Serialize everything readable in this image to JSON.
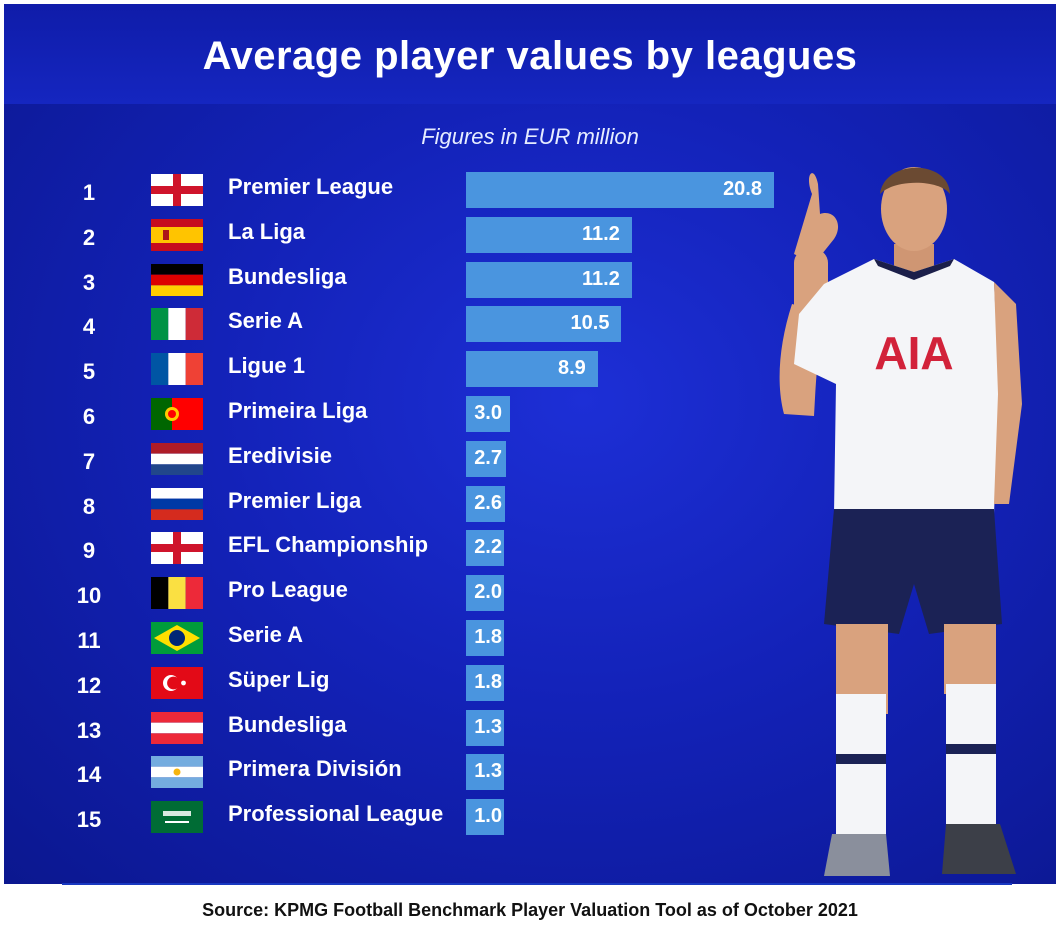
{
  "chart_data": {
    "type": "bar",
    "orientation": "horizontal",
    "title": "Average player values by leagues",
    "subtitle": "Figures in EUR million",
    "source": "Source: KPMG Football Benchmark Player Valuation Tool as of October 2021",
    "grid": false,
    "legend": "none",
    "bar_color": "#4a95df",
    "xlim": [
      0,
      20.8
    ],
    "rows": [
      {
        "rank": "1",
        "flag": "england-flag",
        "league": "Premier League",
        "value": 20.8,
        "label": "20.8"
      },
      {
        "rank": "2",
        "flag": "spain-flag",
        "league": "La Liga",
        "value": 11.2,
        "label": "11.2"
      },
      {
        "rank": "3",
        "flag": "germany-flag",
        "league": "Bundesliga",
        "value": 11.2,
        "label": "11.2"
      },
      {
        "rank": "4",
        "flag": "italy-flag",
        "league": "Serie A",
        "value": 10.5,
        "label": "10.5"
      },
      {
        "rank": "5",
        "flag": "france-flag",
        "league": "Ligue 1",
        "value": 8.9,
        "label": "8.9"
      },
      {
        "rank": "6",
        "flag": "portugal-flag",
        "league": "Primeira Liga",
        "value": 3.0,
        "label": "3.0"
      },
      {
        "rank": "7",
        "flag": "netherlands-flag",
        "league": "Eredivisie",
        "value": 2.7,
        "label": "2.7"
      },
      {
        "rank": "8",
        "flag": "russia-flag",
        "league": "Premier Liga",
        "value": 2.6,
        "label": "2.6"
      },
      {
        "rank": "9",
        "flag": "england-flag",
        "league": "EFL Championship",
        "value": 2.2,
        "label": "2.2"
      },
      {
        "rank": "10",
        "flag": "belgium-flag",
        "league": "Pro League",
        "value": 2.0,
        "label": "2.0"
      },
      {
        "rank": "11",
        "flag": "brazil-flag",
        "league": "Serie A",
        "value": 1.8,
        "label": "1.8"
      },
      {
        "rank": "12",
        "flag": "turkey-flag",
        "league": "Süper Lig",
        "value": 1.8,
        "label": "1.8"
      },
      {
        "rank": "13",
        "flag": "austria-flag",
        "league": "Bundesliga",
        "value": 1.3,
        "label": "1.3"
      },
      {
        "rank": "14",
        "flag": "argentina-flag",
        "league": "Primera División",
        "value": 1.3,
        "label": "1.3"
      },
      {
        "rank": "15",
        "flag": "saudi-arabia-flag",
        "league": "Professional League",
        "value": 1.0,
        "label": "1.0"
      }
    ]
  },
  "photo": {
    "shirt_sponsor": "AIA"
  }
}
